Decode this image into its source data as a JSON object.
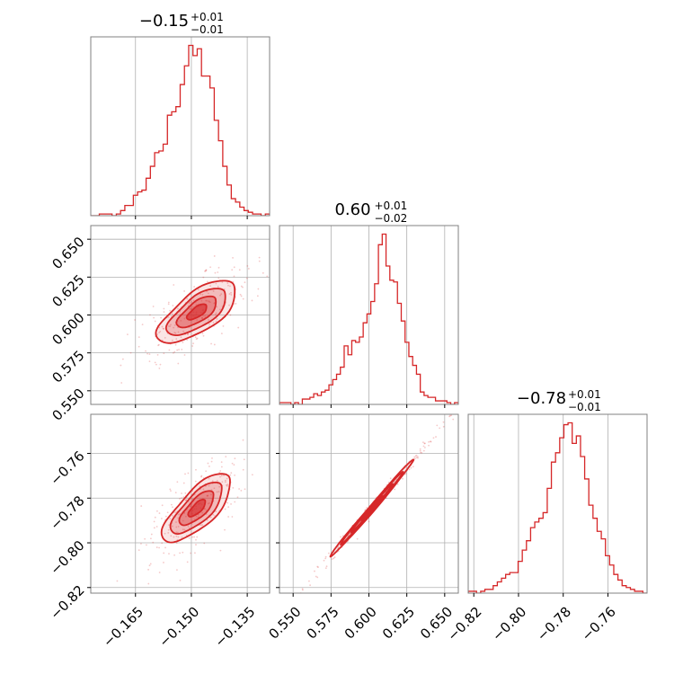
{
  "chart_data": {
    "type": "corner",
    "color": "#d62728",
    "grid": true,
    "parameters": [
      {
        "range": [
          -0.177,
          -0.129
        ],
        "ticks": [
          -0.165,
          -0.15,
          -0.135
        ],
        "tick_labels": [
          "−0.165",
          "−0.150",
          "−0.135"
        ]
      },
      {
        "range": [
          0.541,
          0.659
        ],
        "ticks": [
          0.55,
          0.575,
          0.6,
          0.625,
          0.65
        ],
        "tick_labels": [
          "0.550",
          "0.575",
          "0.600",
          "0.625",
          "0.650"
        ]
      },
      {
        "range": [
          -0.8225,
          -0.7425
        ],
        "ticks": [
          -0.82,
          -0.8,
          -0.78,
          -0.76
        ],
        "tick_labels": [
          "−0.82",
          "−0.80",
          "−0.78",
          "−0.76"
        ]
      }
    ],
    "titles": [
      {
        "median": "−0.15",
        "upper": "+0.01",
        "lower": "−0.01"
      },
      {
        "median": "0.60",
        "upper": "+0.01",
        "lower": "−0.02"
      },
      {
        "median": "−0.78",
        "upper": "+0.01",
        "lower": "−0.01"
      }
    ],
    "histograms": [
      {
        "bins_start": -0.177,
        "bins_end": -0.129,
        "counts": [
          0,
          0,
          1,
          1,
          1,
          0,
          1,
          3,
          6,
          6,
          12,
          14,
          15,
          22,
          29,
          37,
          38,
          42,
          59,
          61,
          64,
          77,
          88,
          100,
          94,
          98,
          82,
          82,
          75,
          56,
          44,
          29,
          18,
          10,
          8,
          5,
          3,
          2,
          1,
          1,
          0,
          1
        ]
      },
      {
        "bins_start": 0.541,
        "bins_end": 0.659,
        "counts": [
          1,
          1,
          1,
          0,
          1,
          0,
          3,
          3,
          4,
          6,
          5,
          7,
          8,
          11,
          14,
          17,
          21,
          33,
          28,
          36,
          35,
          38,
          46,
          51,
          58,
          68,
          90,
          96,
          78,
          70,
          69,
          57,
          47,
          35,
          27,
          22,
          17,
          7,
          5,
          4,
          4,
          2,
          2,
          2,
          1,
          0,
          1
        ]
      },
      {
        "bins_start": -0.8225,
        "bins_end": -0.7425,
        "counts": [
          1,
          1,
          0,
          1,
          2,
          2,
          4,
          6,
          8,
          10,
          11,
          11,
          17,
          23,
          28,
          35,
          38,
          40,
          43,
          56,
          70,
          75,
          83,
          90,
          91,
          80,
          84,
          73,
          61,
          47,
          40,
          33,
          29,
          20,
          15,
          10,
          7,
          4,
          3,
          2,
          1,
          1,
          0
        ]
      }
    ],
    "contours_2d": [
      {
        "pair": [
          0,
          1
        ],
        "center": [
          -0.1485,
          0.602
        ],
        "slope": 2.48,
        "long_sd": 0.011,
        "short_sd": 0.0036
      },
      {
        "pair": [
          0,
          2
        ],
        "center": [
          -0.1485,
          -0.7845
        ],
        "slope": 1.96,
        "long_sd": 0.0085,
        "short_sd": 0.0028
      },
      {
        "pair": [
          1,
          2
        ],
        "center": [
          0.602,
          -0.7845
        ],
        "slope": 0.79,
        "long_sd": 0.0175,
        "short_sd": 0.0008
      }
    ]
  }
}
